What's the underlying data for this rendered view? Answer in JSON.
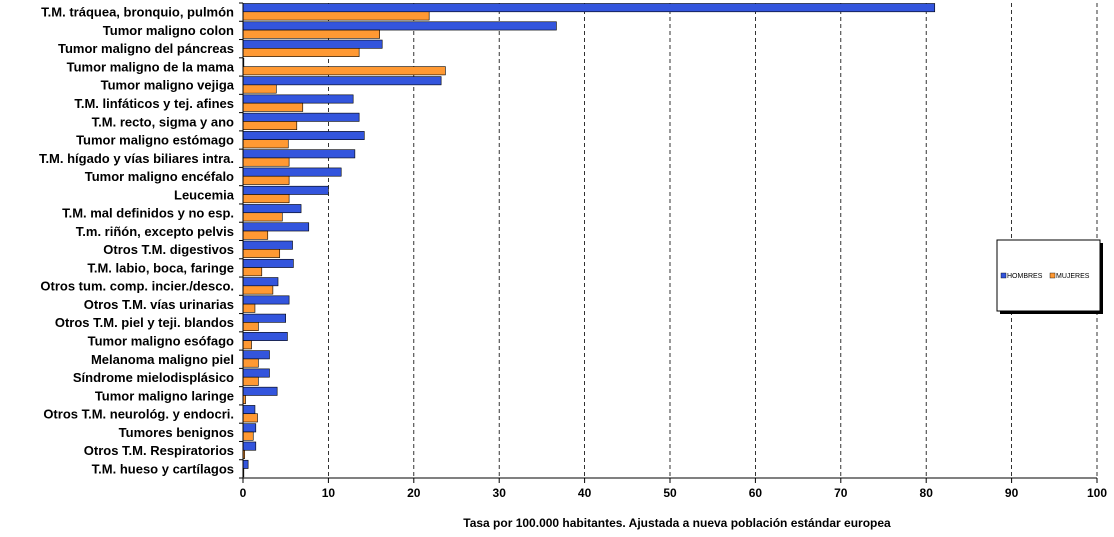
{
  "chart_data": {
    "type": "bar",
    "orientation": "horizontal",
    "categories": [
      "T.M. tráquea, bronquio,  pulmón",
      "Tumor maligno colon",
      "Tumor maligno del páncreas",
      "Tumor maligno de la mama",
      "Tumor maligno vejiga",
      "T.M. linfáticos y tej. afines",
      "T.M. recto, sigma y ano",
      "Tumor maligno estómago",
      "T.M. hígado y vías biliares intra.",
      "Tumor maligno encéfalo",
      "Leucemia",
      "T.M. mal definidos y no esp.",
      "T.m. riñón, excepto pelvis",
      "Otros T.M. digestivos",
      "T.M. labio, boca, faringe",
      "Otros tum. comp. incier./desco.",
      "Otros T.M.  vías urinarias",
      "Otros T.M. piel y teji. blandos",
      "Tumor maligno esófago",
      "Melanoma maligno piel",
      "Síndrome mielodisplásico",
      "Tumor maligno laringe",
      "Otros T.M. neurológ. y endocri.",
      "Tumores benignos",
      "Otros T.M. Respiratorios",
      "T.M.  hueso y cartílagos"
    ],
    "series": [
      {
        "name": "HOMBRES",
        "color": "#3355dd",
        "values": [
          81.0,
          36.7,
          16.3,
          0.1,
          23.2,
          12.9,
          13.6,
          14.2,
          13.1,
          11.5,
          10.0,
          6.8,
          7.7,
          5.8,
          5.9,
          4.1,
          5.4,
          5.0,
          5.2,
          3.1,
          3.1,
          4.0,
          1.4,
          1.5,
          1.5,
          0.6
        ]
      },
      {
        "name": "MUJERES",
        "color": "#ff9933",
        "values": [
          21.8,
          16.0,
          13.6,
          23.7,
          3.9,
          7.0,
          6.3,
          5.3,
          5.4,
          5.4,
          5.4,
          4.6,
          2.9,
          4.3,
          2.2,
          3.5,
          1.4,
          1.8,
          1.0,
          1.8,
          1.8,
          0.3,
          1.7,
          1.2,
          0.2,
          0.1
        ]
      }
    ],
    "xlabel": "Tasa por 100.000 habitantes. Ajustada a nueva población estándar europea",
    "xlim": [
      0,
      100
    ],
    "xticks": [
      0,
      10,
      20,
      30,
      40,
      50,
      60,
      70,
      80,
      90,
      100
    ],
    "grid": "vertical dashed",
    "legend": "right"
  }
}
